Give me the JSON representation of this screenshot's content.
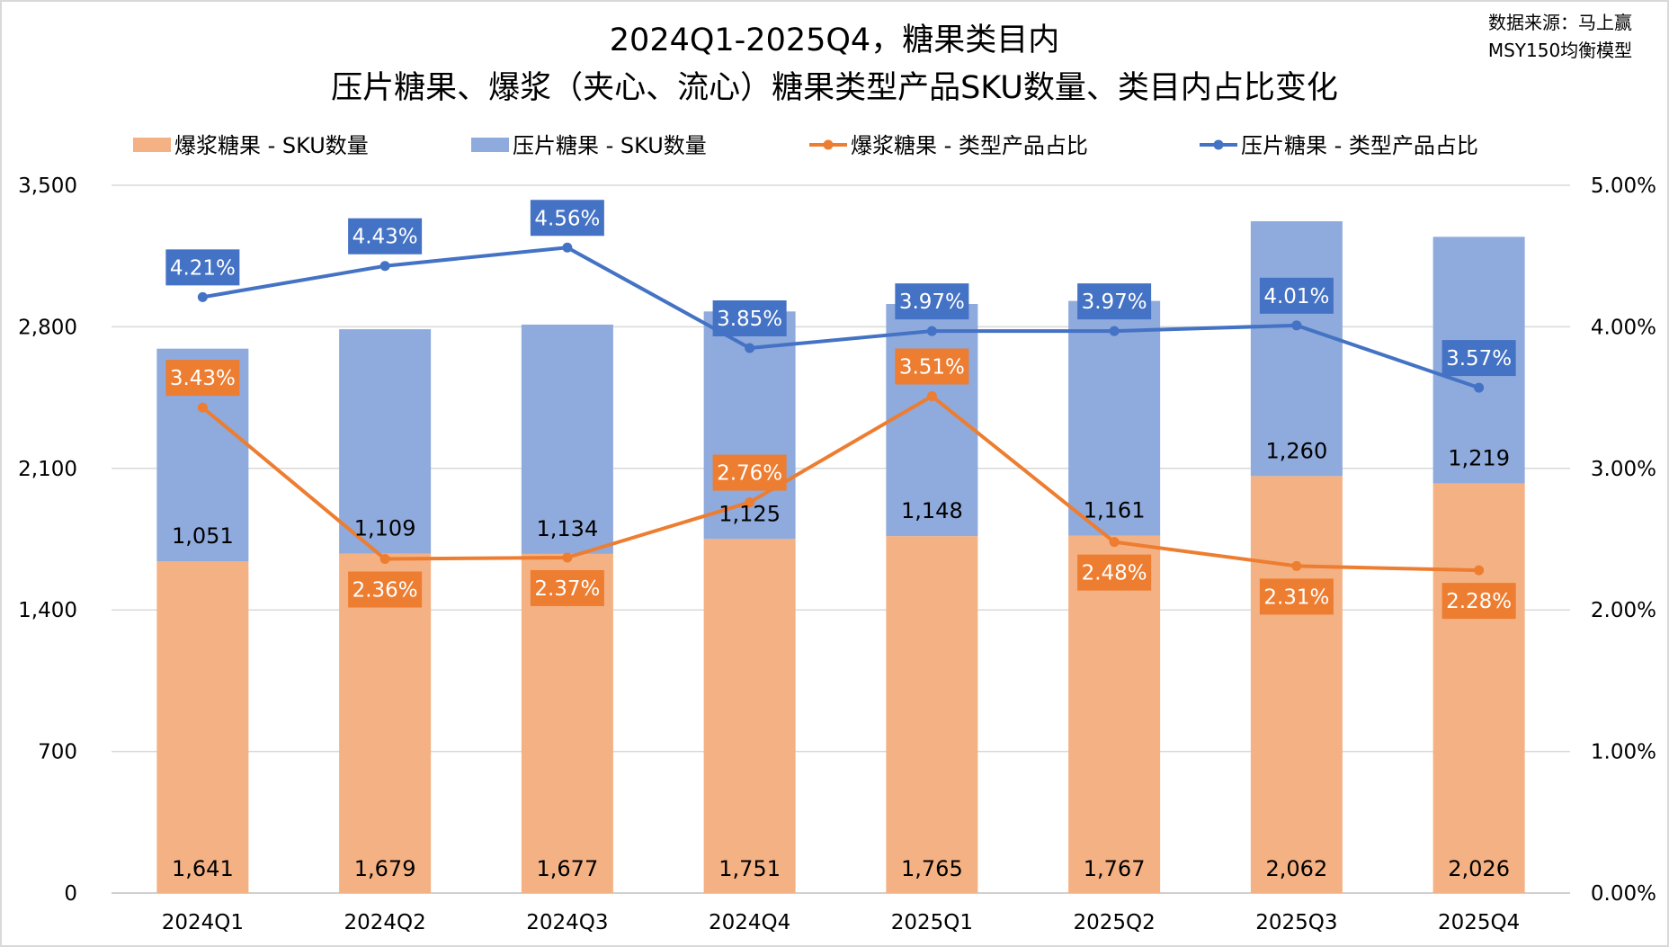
{
  "chart_data": {
    "type": "bar+line",
    "title_line1": "2024Q1-2025Q4，糖果类目内",
    "title_line2": "压片糖果、爆浆（夹心、流心）糖果类型产品SKU数量、类目内占比变化",
    "source_line1": "数据来源：马上赢",
    "source_line2": "MSY150均衡模型",
    "categories": [
      "2024Q1",
      "2024Q2",
      "2024Q3",
      "2024Q4",
      "2025Q1",
      "2025Q2",
      "2025Q3",
      "2025Q4"
    ],
    "left_axis": {
      "ylim": [
        0,
        3500
      ],
      "ticks": [
        "0",
        "700",
        "1,400",
        "2,100",
        "2,800",
        "3,500"
      ],
      "tick_values": [
        0,
        700,
        1400,
        2100,
        2800,
        3500
      ]
    },
    "right_axis": {
      "ylim": [
        0,
        5
      ],
      "ticks": [
        "0.00%",
        "1.00%",
        "2.00%",
        "3.00%",
        "4.00%",
        "5.00%"
      ],
      "tick_values": [
        0,
        1,
        2,
        3,
        4,
        5
      ]
    },
    "grid": true,
    "legend_position": "top",
    "series": [
      {
        "name": "爆浆糖果 - SKU数量",
        "type": "stacked-bar",
        "axis": "left",
        "color": "#F4B183",
        "values": [
          1641,
          1679,
          1677,
          1751,
          1765,
          1767,
          2062,
          2026
        ],
        "labels": [
          "1,641",
          "1,679",
          "1,677",
          "1,751",
          "1,765",
          "1,767",
          "2,062",
          "2,026"
        ]
      },
      {
        "name": "压片糖果 - SKU数量",
        "type": "stacked-bar",
        "axis": "left",
        "color": "#8FAADC",
        "values": [
          1051,
          1109,
          1134,
          1125,
          1148,
          1161,
          1260,
          1219
        ],
        "labels": [
          "1,051",
          "1,109",
          "1,134",
          "1,125",
          "1,148",
          "1,161",
          "1,260",
          "1,219"
        ]
      },
      {
        "name": "爆浆糖果 - 类型产品占比",
        "type": "line",
        "axis": "right",
        "color": "#ED7D31",
        "values": [
          3.43,
          2.36,
          2.37,
          2.76,
          3.51,
          2.48,
          2.31,
          2.28
        ],
        "labels": [
          "3.43%",
          "2.36%",
          "2.37%",
          "2.76%",
          "3.51%",
          "2.48%",
          "2.31%",
          "2.28%"
        ],
        "label_side": [
          "above",
          "below",
          "below",
          "above",
          "above",
          "below",
          "below",
          "below"
        ]
      },
      {
        "name": "压片糖果 - 类型产品占比",
        "type": "line",
        "axis": "right",
        "color": "#4472C4",
        "values": [
          4.21,
          4.43,
          4.56,
          3.85,
          3.97,
          3.97,
          4.01,
          3.57
        ],
        "labels": [
          "4.21%",
          "4.43%",
          "4.56%",
          "3.85%",
          "3.97%",
          "3.97%",
          "4.01%",
          "3.57%"
        ],
        "label_side": [
          "above",
          "above",
          "above",
          "above",
          "above",
          "above",
          "above",
          "above"
        ]
      }
    ]
  }
}
